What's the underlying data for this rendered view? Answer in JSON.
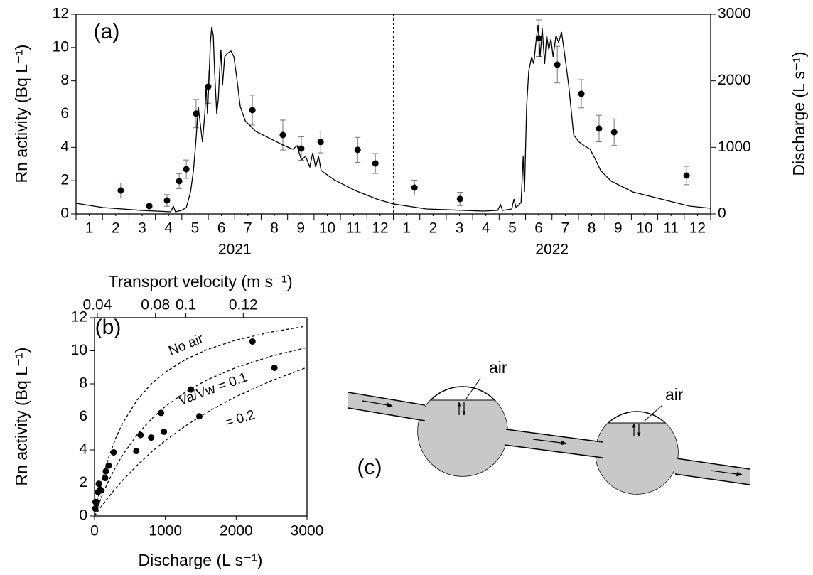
{
  "chart_data": [
    {
      "type": "line",
      "panel_label": "(a)",
      "y_label": "Rn activity (Bq L⁻¹)",
      "y2_label": "Discharge (L s⁻¹)",
      "xlim": [
        0,
        24
      ],
      "xticks": [
        {
          "value": 0.5,
          "label": "1"
        },
        {
          "value": 1.5,
          "label": "2"
        },
        {
          "value": 2.5,
          "label": "3"
        },
        {
          "value": 3.5,
          "label": "4"
        },
        {
          "value": 4.5,
          "label": "5"
        },
        {
          "value": 5.5,
          "label": "6"
        },
        {
          "value": 6.5,
          "label": "7"
        },
        {
          "value": 7.5,
          "label": "8"
        },
        {
          "value": 8.5,
          "label": "9"
        },
        {
          "value": 9.5,
          "label": "10"
        },
        {
          "value": 10.5,
          "label": "11"
        },
        {
          "value": 11.5,
          "label": "12"
        },
        {
          "value": 12.5,
          "label": "1"
        },
        {
          "value": 13.5,
          "label": "2"
        },
        {
          "value": 14.5,
          "label": "3"
        },
        {
          "value": 15.5,
          "label": "4"
        },
        {
          "value": 16.5,
          "label": "5"
        },
        {
          "value": 17.5,
          "label": "6"
        },
        {
          "value": 18.5,
          "label": "7"
        },
        {
          "value": 19.5,
          "label": "8"
        },
        {
          "value": 20.5,
          "label": "9"
        },
        {
          "value": 21.5,
          "label": "10"
        },
        {
          "value": 22.5,
          "label": "11"
        },
        {
          "value": 23.5,
          "label": "12"
        }
      ],
      "x_groups": [
        {
          "label": "2021",
          "range": [
            0,
            12
          ]
        },
        {
          "label": "2022",
          "range": [
            12,
            24
          ]
        }
      ],
      "ylim": [
        0,
        12
      ],
      "yticks": [
        0,
        2,
        4,
        6,
        8,
        10,
        12
      ],
      "y2lim": [
        0,
        3000
      ],
      "y2ticks": [
        0,
        1000,
        2000,
        3000
      ],
      "series": [
        {
          "type": "scatter",
          "color": "#000000",
          "x": [
            1.69,
            2.77,
            3.44,
            3.9,
            4.17,
            4.54,
            5.0,
            6.67,
            7.82,
            8.52,
            9.25,
            10.65,
            11.32,
            12.8,
            14.52,
            17.5,
            18.2,
            19.11,
            19.78,
            20.35,
            23.09
          ],
          "values": [
            1.41,
            0.47,
            0.81,
            1.97,
            2.69,
            6.03,
            7.65,
            6.24,
            4.74,
            3.93,
            4.32,
            3.85,
            3.03,
            1.58,
            0.9,
            10.56,
            8.97,
            7.22,
            5.13,
            4.91,
            2.31
          ],
          "errors": [
            0.45,
            0.1,
            0.35,
            0.45,
            0.55,
            0.85,
            1.0,
            0.9,
            0.9,
            0.7,
            0.65,
            0.75,
            0.6,
            0.45,
            0.4,
            1.1,
            1.1,
            0.85,
            0.8,
            0.8,
            0.55
          ]
        },
        {
          "type": "line",
          "axis": "y2",
          "color": "#000000",
          "x": [
            0,
            1.02,
            2.5,
            3.58,
            3.68,
            3.76,
            3.98,
            4.17,
            4.33,
            4.44,
            4.54,
            4.62,
            4.7,
            4.78,
            4.87,
            4.92,
            4.97,
            5.03,
            5.08,
            5.13,
            5.19,
            5.24,
            5.32,
            5.38,
            5.43,
            5.48,
            5.54,
            5.62,
            5.73,
            5.86,
            5.97,
            6.08,
            6.21,
            6.4,
            6.8,
            7.34,
            7.88,
            8.2,
            8.36,
            8.52,
            8.68,
            8.84,
            8.95,
            9.06,
            9.17,
            9.27,
            9.76,
            10.56,
            11.37,
            12,
            13.25,
            15.4,
            15.94,
            16.05,
            16.13,
            16.48,
            16.56,
            16.64,
            16.83,
            16.91,
            16.96,
            17.04,
            17.12,
            17.23,
            17.31,
            17.39,
            17.47,
            17.55,
            17.63,
            17.72,
            17.8,
            17.88,
            17.96,
            18.04,
            18.15,
            18.25,
            18.36,
            18.49,
            18.63,
            18.82,
            19.03,
            19.22,
            19.44,
            19.65,
            19.84,
            20.24,
            21.05,
            22.12,
            23.2,
            24
          ],
          "values": [
            160,
            96,
            53,
            32,
            117,
            32,
            53,
            96,
            331,
            651,
            1132,
            1613,
            1346,
            1079,
            1506,
            1933,
            1506,
            2040,
            2574,
            2809,
            2681,
            2147,
            1506,
            1719,
            2147,
            2467,
            1933,
            2360,
            2414,
            2446,
            2360,
            2040,
            1613,
            1399,
            1239,
            1132,
            1025,
            972,
            1025,
            812,
            865,
            705,
            918,
            705,
            865,
            651,
            513,
            352,
            224,
            150,
            75,
            43,
            53,
            139,
            53,
            75,
            224,
            96,
            171,
            865,
            331,
            1613,
            2147,
            2360,
            2253,
            2574,
            2841,
            2360,
            2787,
            2253,
            2681,
            2467,
            2627,
            2360,
            2681,
            2574,
            2734,
            2360,
            1933,
            1185,
            1079,
            1025,
            972,
            812,
            651,
            491,
            331,
            224,
            117,
            85
          ]
        }
      ]
    },
    {
      "type": "scatter",
      "panel_label": "(b)",
      "y_label": "Rn activity (Bq L⁻¹)",
      "x_label": "Discharge (L s⁻¹)",
      "x2_label": "Transport velocity (m s⁻¹)",
      "xlim": [
        0,
        3000
      ],
      "xticks": [
        0,
        1000,
        2000,
        3000
      ],
      "x2ticks": [
        {
          "value": 40,
          "label": "0.04"
        },
        {
          "value": 860,
          "label": "0.08"
        },
        {
          "value": 1290,
          "label": "0.1"
        },
        {
          "value": 2100,
          "label": "0.12"
        }
      ],
      "ylim": [
        0,
        12
      ],
      "yticks": [
        0,
        2,
        4,
        6,
        8,
        10,
        12
      ],
      "series": [
        {
          "type": "scatter",
          "color": "#000000",
          "x": [
            10,
            15,
            30,
            50,
            60,
            80,
            90,
            150,
            160,
            200,
            270,
            590,
            650,
            800,
            940,
            980,
            1360,
            1480,
            2230,
            2540
          ],
          "values": [
            0.45,
            0.85,
            0.8,
            1.45,
            1.95,
            1.6,
            1.55,
            2.3,
            2.7,
            3.05,
            3.85,
            3.93,
            4.9,
            4.75,
            6.24,
            5.1,
            7.65,
            6.03,
            10.56,
            8.97
          ]
        },
        {
          "type": "line",
          "name": "No air",
          "dashed": true,
          "color": "#000000",
          "x": [
            0,
            25,
            50,
            100,
            150,
            200,
            300,
            400,
            600,
            800,
            1000,
            1300,
            1600,
            2000,
            2500,
            3000
          ],
          "values": [
            0,
            0.57,
            1.1,
            2.04,
            2.85,
            3.55,
            4.72,
            5.64,
            7.01,
            7.99,
            8.71,
            9.51,
            10.09,
            10.65,
            11.14,
            11.5
          ]
        },
        {
          "type": "line",
          "name": "Va/Vw = 0.1",
          "dashed": true,
          "color": "#000000",
          "x": [
            0,
            25,
            50,
            100,
            150,
            200,
            300,
            400,
            600,
            800,
            1000,
            1300,
            1600,
            2000,
            2500,
            3000
          ],
          "values": [
            0,
            0.31,
            0.6,
            1.16,
            1.67,
            2.14,
            2.98,
            3.71,
            4.91,
            5.86,
            6.63,
            7.55,
            8.26,
            8.99,
            9.68,
            10.2
          ]
        },
        {
          "type": "line",
          "name": "= 0.2",
          "dashed": true,
          "color": "#000000",
          "x": [
            0,
            25,
            50,
            100,
            150,
            200,
            300,
            400,
            600,
            800,
            1000,
            1300,
            1600,
            2000,
            2500,
            3000
          ],
          "values": [
            0,
            0.15,
            0.3,
            0.6,
            0.88,
            1.16,
            1.68,
            2.17,
            3.06,
            3.86,
            4.57,
            5.5,
            6.31,
            7.23,
            8.19,
            9.0
          ]
        }
      ]
    }
  ],
  "diagram": {
    "panel_label": "(c)",
    "air_labels": [
      "air",
      "air"
    ]
  }
}
